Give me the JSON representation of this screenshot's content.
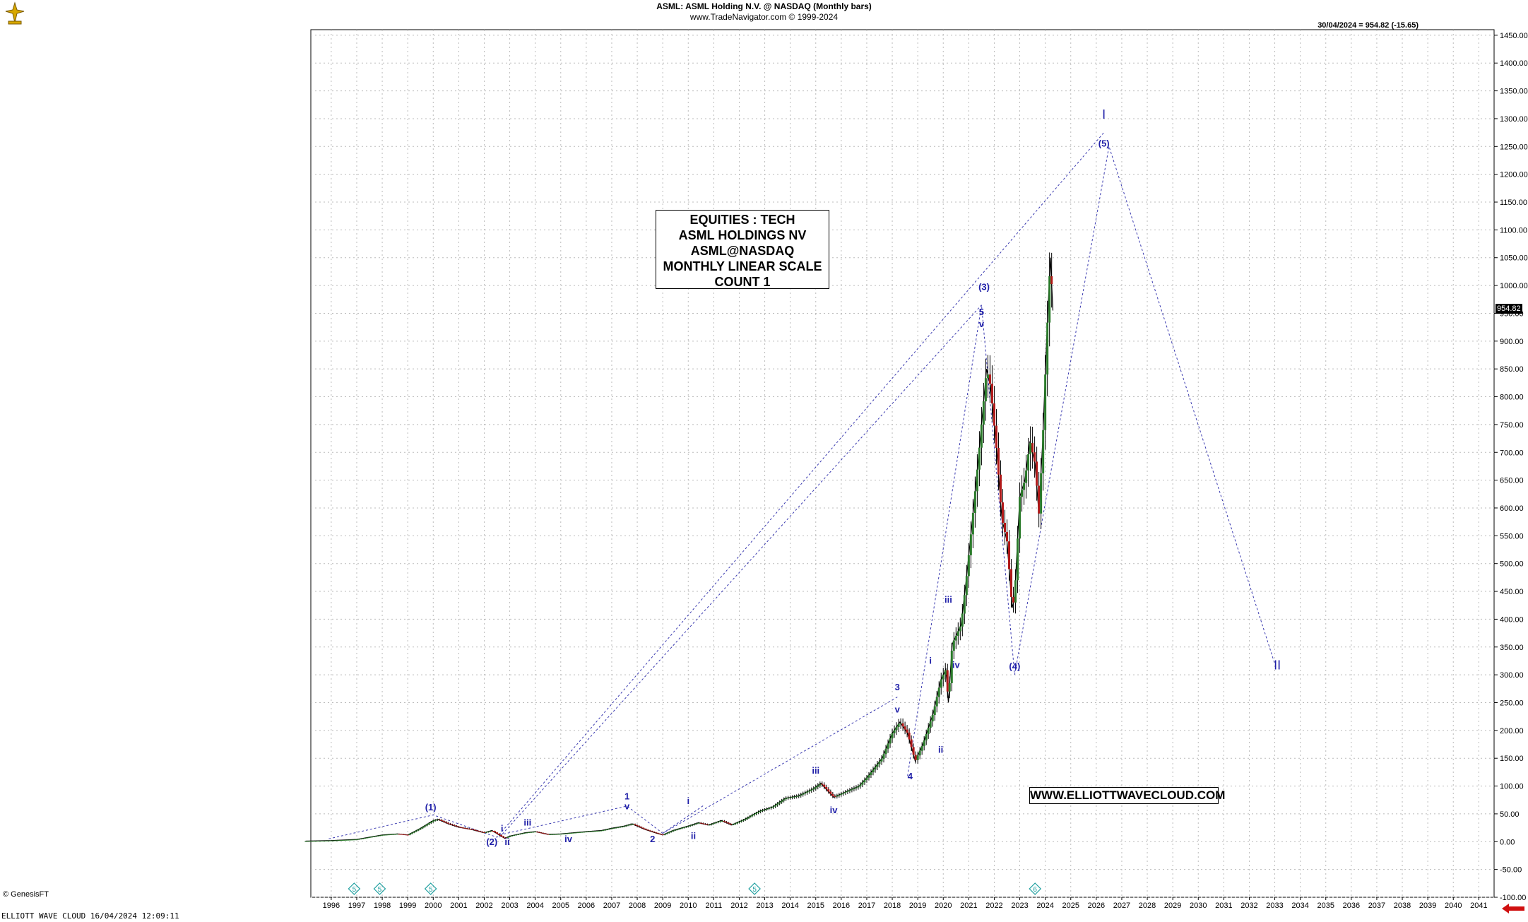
{
  "header": {
    "title": "ASML:  ASML Holding N.V. @ NASDAQ  (Monthly bars)",
    "subtitle": "www.TradeNavigator.com © 1999-2024",
    "last_bar": "30/04/2024 = 954.82 (-15.65)"
  },
  "info_box": {
    "line1": "EQUITIES : TECH",
    "line2": "ASML HOLDINGS NV",
    "line3": "ASML@NASDAQ",
    "line4": "MONTHLY LINEAR SCALE",
    "line5": "COUNT 1"
  },
  "url_box": "WWW.ELLIOTTWAVECLOUD.COM",
  "copyright": "© GenesisFT",
  "footer": "ELLIOTT WAVE CLOUD   16/04/2024 12:09:11",
  "colors": {
    "wave_label": "#1f1fa8",
    "dotted_line": "#3a3ab0",
    "bull_bar": "#2a7a2a",
    "bear_bar": "#b01818",
    "price": "#000000"
  },
  "chart_data": {
    "type": "candlestick",
    "title": "ASML:  ASML Holding N.V. @ NASDAQ  (Monthly bars)",
    "x_ticks": [
      "1996",
      "1997",
      "1998",
      "1999",
      "2000",
      "2001",
      "2002",
      "2003",
      "2004",
      "2005",
      "2006",
      "2007",
      "2008",
      "2009",
      "2010",
      "2011",
      "2012",
      "2013",
      "2014",
      "2015",
      "2016",
      "2017",
      "2018",
      "2019",
      "2020",
      "2021",
      "2022",
      "2023",
      "2024",
      "2025",
      "2026",
      "2027",
      "2028",
      "2029",
      "2030",
      "2031",
      "2032",
      "2033",
      "2034",
      "2035",
      "2036",
      "2037",
      "2038",
      "2039",
      "2040",
      "2041"
    ],
    "y_ticks": [
      1450,
      1400,
      1350,
      1300,
      1250,
      1200,
      1150,
      1100,
      1050,
      1000,
      950,
      900,
      850,
      800,
      750,
      700,
      650,
      600,
      550,
      500,
      450,
      400,
      350,
      300,
      250,
      200,
      150,
      100,
      50,
      0,
      -50,
      -100
    ],
    "y_tick_labels": [
      "1450.00",
      "1400.00",
      "1350.00",
      "1300.00",
      "1250.00",
      "1200.00",
      "1150.00",
      "1100.00",
      "1050.00",
      "1000.00",
      "950.00",
      "900.00",
      "850.00",
      "800.00",
      "750.00",
      "700.00",
      "650.00",
      "600.00",
      "550.00",
      "500.00",
      "450.00",
      "400.00",
      "350.00",
      "300.00",
      "250.00",
      "200.00",
      "150.00",
      "100.00",
      "50.00",
      "0.00",
      "-50.00",
      "-100.00"
    ],
    "ylim": [
      -100,
      1460
    ],
    "xlim": [
      1995.2,
      2041.6
    ],
    "last_price": "954.82",
    "price_path": [
      [
        1995.0,
        1
      ],
      [
        1996.0,
        2
      ],
      [
        1997.0,
        4
      ],
      [
        1997.5,
        8
      ],
      [
        1998.0,
        12
      ],
      [
        1998.6,
        14
      ],
      [
        1999.0,
        12
      ],
      [
        1999.5,
        24
      ],
      [
        2000.0,
        38
      ],
      [
        2000.2,
        40
      ],
      [
        2000.6,
        32
      ],
      [
        2001.0,
        26
      ],
      [
        2001.5,
        22
      ],
      [
        2002.0,
        16
      ],
      [
        2002.3,
        20
      ],
      [
        2002.8,
        6
      ],
      [
        2003.0,
        10
      ],
      [
        2003.6,
        16
      ],
      [
        2004.0,
        18
      ],
      [
        2004.5,
        13
      ],
      [
        2005.0,
        14
      ],
      [
        2005.5,
        16
      ],
      [
        2006.0,
        18
      ],
      [
        2006.6,
        20
      ],
      [
        2007.0,
        24
      ],
      [
        2007.5,
        28
      ],
      [
        2007.8,
        32
      ],
      [
        2008.3,
        22
      ],
      [
        2008.7,
        16
      ],
      [
        2009.0,
        12
      ],
      [
        2009.4,
        20
      ],
      [
        2010.0,
        28
      ],
      [
        2010.4,
        34
      ],
      [
        2010.8,
        30
      ],
      [
        2011.3,
        38
      ],
      [
        2011.7,
        30
      ],
      [
        2012.2,
        40
      ],
      [
        2012.8,
        55
      ],
      [
        2013.3,
        62
      ],
      [
        2013.8,
        78
      ],
      [
        2014.3,
        82
      ],
      [
        2014.9,
        95
      ],
      [
        2015.2,
        105
      ],
      [
        2015.7,
        80
      ],
      [
        2016.1,
        88
      ],
      [
        2016.7,
        100
      ],
      [
        2017.0,
        115
      ],
      [
        2017.6,
        150
      ],
      [
        2018.0,
        195
      ],
      [
        2018.3,
        215
      ],
      [
        2018.6,
        195
      ],
      [
        2018.9,
        145
      ],
      [
        2019.2,
        175
      ],
      [
        2019.6,
        230
      ],
      [
        2019.9,
        290
      ],
      [
        2020.1,
        310
      ],
      [
        2020.2,
        250
      ],
      [
        2020.35,
        355
      ],
      [
        2020.7,
        390
      ],
      [
        2020.9,
        470
      ],
      [
        2021.1,
        560
      ],
      [
        2021.4,
        700
      ],
      [
        2021.7,
        850
      ],
      [
        2021.85,
        820
      ],
      [
        2022.1,
        700
      ],
      [
        2022.3,
        580
      ],
      [
        2022.5,
        540
      ],
      [
        2022.7,
        420
      ],
      [
        2022.8,
        440
      ],
      [
        2023.0,
        620
      ],
      [
        2023.2,
        650
      ],
      [
        2023.4,
        720
      ],
      [
        2023.6,
        680
      ],
      [
        2023.75,
        590
      ],
      [
        2023.9,
        720
      ],
      [
        2024.05,
        900
      ],
      [
        2024.2,
        1050
      ],
      [
        2024.3,
        955
      ]
    ],
    "wave_lines": [
      {
        "points": [
          [
            1995.9,
            5
          ],
          [
            2000.0,
            48
          ],
          [
            2002.5,
            8
          ],
          [
            2026.3,
            1275
          ]
        ]
      },
      {
        "points": [
          [
            2002.6,
            8
          ],
          [
            2021.5,
            965
          ]
        ]
      },
      {
        "points": [
          [
            2002.6,
            12
          ],
          [
            2007.6,
            64
          ],
          [
            2009.0,
            15
          ],
          [
            2018.2,
            260
          ]
        ]
      },
      {
        "points": [
          [
            2018.6,
            118
          ],
          [
            2021.5,
            965
          ],
          [
            2022.8,
            300
          ],
          [
            2026.5,
            1250
          ],
          [
            2033.0,
            320
          ]
        ]
      },
      {
        "points": [
          [
            2009.0,
            15
          ],
          [
            2010.6,
            65
          ]
        ]
      }
    ],
    "wave_labels": [
      {
        "text": "(1)",
        "x": 1999.9,
        "y": 56
      },
      {
        "text": "(2)",
        "x": 2002.3,
        "y": -6
      },
      {
        "text": "i",
        "x": 2002.7,
        "y": 18
      },
      {
        "text": "ii",
        "x": 2002.9,
        "y": -6
      },
      {
        "text": "iii",
        "x": 2003.7,
        "y": 29
      },
      {
        "text": "iv",
        "x": 2005.3,
        "y": -1
      },
      {
        "text": "1",
        "x": 2007.6,
        "y": 76
      },
      {
        "text": "v",
        "x": 2007.6,
        "y": 58
      },
      {
        "text": "2",
        "x": 2008.6,
        "y": -1
      },
      {
        "text": "i",
        "x": 2010.0,
        "y": 68
      },
      {
        "text": "ii",
        "x": 2010.2,
        "y": 5
      },
      {
        "text": "iii",
        "x": 2015.0,
        "y": 122
      },
      {
        "text": "iv",
        "x": 2015.7,
        "y": 51
      },
      {
        "text": "3",
        "x": 2018.2,
        "y": 272
      },
      {
        "text": "v",
        "x": 2018.2,
        "y": 232
      },
      {
        "text": "4",
        "x": 2018.7,
        "y": 112
      },
      {
        "text": "i",
        "x": 2019.5,
        "y": 320
      },
      {
        "text": "ii",
        "x": 2019.9,
        "y": 160
      },
      {
        "text": "iii",
        "x": 2020.2,
        "y": 430
      },
      {
        "text": "iv",
        "x": 2020.5,
        "y": 312
      },
      {
        "text": "(3)",
        "x": 2021.6,
        "y": 992
      },
      {
        "text": "5",
        "x": 2021.5,
        "y": 947
      },
      {
        "text": "v",
        "x": 2021.5,
        "y": 925
      },
      {
        "text": "(4)",
        "x": 2022.8,
        "y": 310
      },
      {
        "text": "I",
        "x": 2026.3,
        "y": 1300
      },
      {
        "text": "(5)",
        "x": 2026.3,
        "y": 1250
      },
      {
        "text": "II",
        "x": 2033.1,
        "y": 310
      }
    ],
    "cycle_markers": [
      {
        "text": "5",
        "x": 1996.9
      },
      {
        "text": "5",
        "x": 1997.9
      },
      {
        "text": "5",
        "x": 1999.9
      },
      {
        "text": "5",
        "x": 2012.6
      },
      {
        "text": "6",
        "x": 2023.6
      }
    ]
  }
}
